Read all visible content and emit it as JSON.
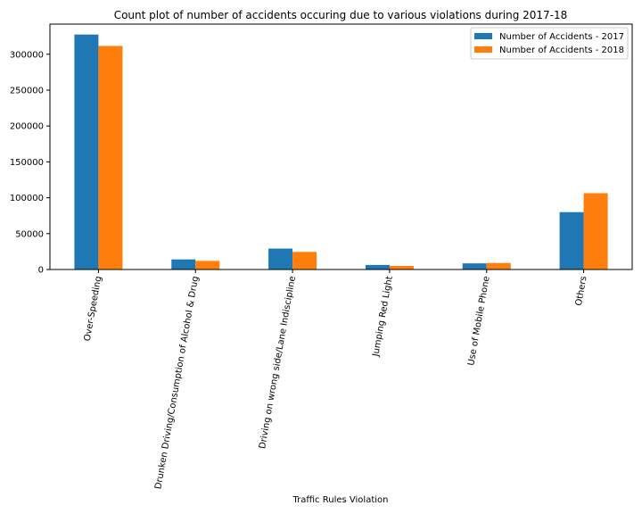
{
  "chart_data": {
    "type": "bar",
    "title": "Count plot of number of accidents occuring due to various violations during 2017-18",
    "xlabel": "Traffic Rules Violation",
    "ylabel": "",
    "categories": [
      "Over-Speeding",
      "Drunken Driving/Consumption of Alcohol & Drug",
      "Driving on wrong side/Lane Indiscipline",
      "Jumping Red Light",
      "Use of Mobile Phone",
      "Others"
    ],
    "series": [
      {
        "name": "Number of Accidents - 2017",
        "color": "#1f77b4",
        "values": [
          327448,
          14071,
          29148,
          6324,
          8526,
          79957
        ]
      },
      {
        "name": "Number of Accidents - 2018",
        "color": "#ff7f0e",
        "values": [
          311583,
          12018,
          24539,
          4969,
          9039,
          106372
        ]
      }
    ],
    "ylim": [
      0,
      342000
    ],
    "yticks": [
      0,
      50000,
      100000,
      150000,
      200000,
      250000,
      300000
    ],
    "ytick_labels": [
      "0",
      "50000",
      "100000",
      "150000",
      "200000",
      "250000",
      "300000"
    ],
    "legend_position": "top-right",
    "grid": false
  }
}
